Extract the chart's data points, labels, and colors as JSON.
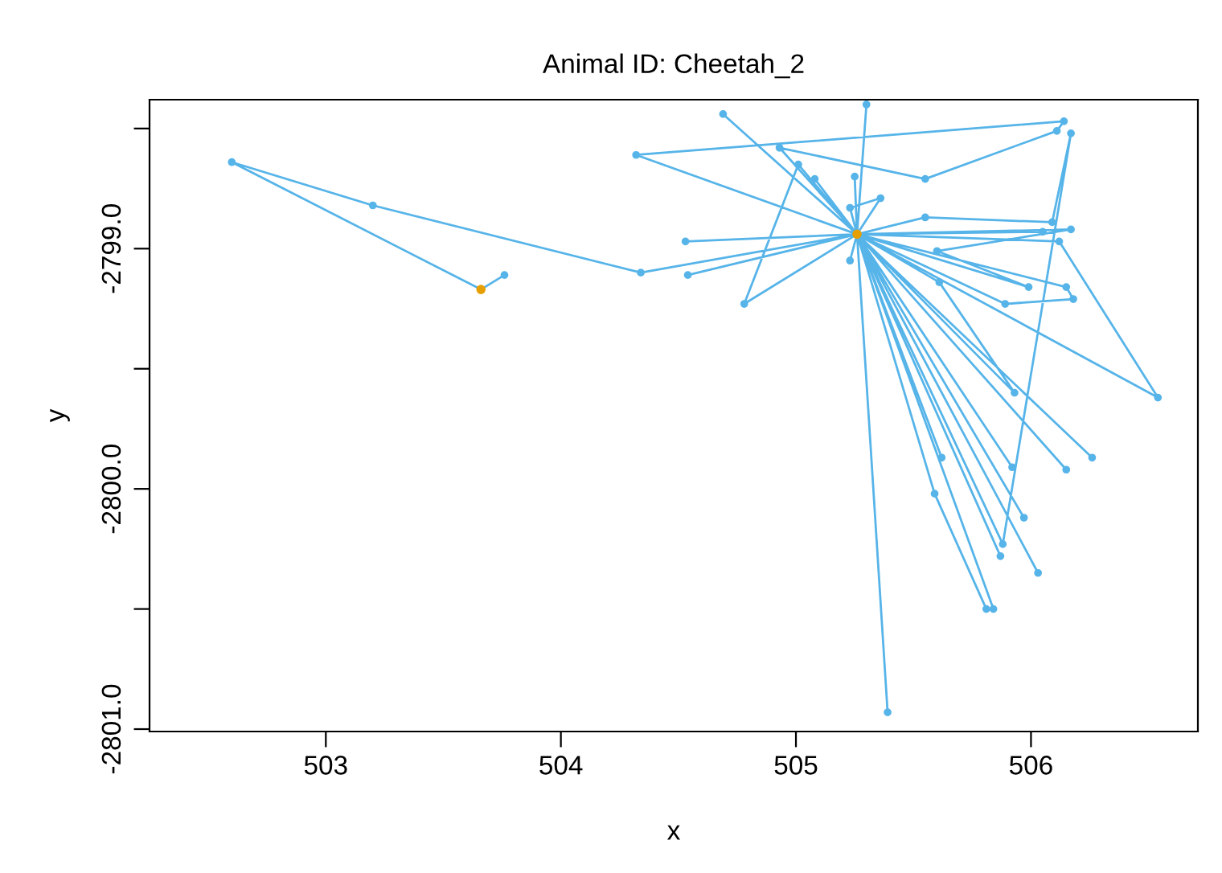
{
  "chart_data": {
    "type": "line",
    "title": "Animal ID: Cheetah_2",
    "xlabel": "x",
    "ylabel": "y",
    "xlim": [
      502.25,
      506.71
    ],
    "ylim": [
      -2801.01,
      -2798.38
    ],
    "xticks": [
      503,
      504,
      505,
      506
    ],
    "yticks": [
      {
        "value": -2798.5,
        "label": null
      },
      {
        "value": -2799,
        "label": "-2799.0"
      },
      {
        "value": -2799.5,
        "label": null
      },
      {
        "value": -2800,
        "label": "-2800.0"
      },
      {
        "value": -2800.5,
        "label": null
      },
      {
        "value": -2801,
        "label": "-2801.0"
      }
    ],
    "grid": false,
    "legend": false,
    "marker": "circle",
    "line_style": "solid",
    "series": [
      {
        "color": "#56b4e9",
        "x": [
          503.76,
          503.66,
          502.6,
          503.2,
          504.34,
          505.26,
          504.69,
          505.26,
          505.3,
          505.26,
          504.32,
          506.14,
          506.11,
          505.55,
          504.93,
          505.26,
          505.01,
          504.78,
          505.26,
          505.08,
          505.26,
          505.25,
          505.26,
          505.36,
          505.23,
          505.26,
          505.55,
          506.09,
          506.17,
          505.88,
          505.26,
          504.53,
          505.26,
          504.54,
          505.26,
          506.05,
          505.26,
          506.17,
          505.6,
          505.99,
          505.26,
          506.12,
          506.54,
          505.26,
          505.23,
          505.26,
          506.15,
          506.18,
          505.89,
          505.26,
          505.61,
          505.93,
          505.26,
          505.62,
          505.26,
          505.92,
          505.26,
          506.15,
          505.26,
          506.26,
          505.26,
          505.59,
          505.81,
          505.84,
          505.26,
          505.97,
          505.26,
          505.87,
          505.26,
          506.03,
          505.26,
          505.39,
          505.26
        ],
        "values": [
          -2799.11,
          -2799.17,
          -2798.64,
          -2798.82,
          -2799.1,
          -2798.94,
          -2798.44,
          -2798.94,
          -2798.4,
          -2798.94,
          -2798.61,
          -2798.47,
          -2798.51,
          -2798.71,
          -2798.58,
          -2798.94,
          -2798.65,
          -2799.23,
          -2798.94,
          -2798.71,
          -2798.94,
          -2798.7,
          -2798.94,
          -2798.79,
          -2798.83,
          -2798.94,
          -2798.87,
          -2798.89,
          -2798.52,
          -2800.23,
          -2798.94,
          -2798.97,
          -2798.94,
          -2799.11,
          -2798.94,
          -2798.93,
          -2798.94,
          -2798.92,
          -2799.01,
          -2799.16,
          -2798.94,
          -2798.97,
          -2799.62,
          -2798.94,
          -2799.05,
          -2798.94,
          -2799.16,
          -2799.21,
          -2799.23,
          -2798.94,
          -2799.14,
          -2799.6,
          -2798.94,
          -2799.87,
          -2798.94,
          -2799.91,
          -2798.94,
          -2799.92,
          -2798.94,
          -2799.87,
          -2798.94,
          -2800.02,
          -2800.5,
          -2800.5,
          -2798.94,
          -2800.12,
          -2798.94,
          -2800.28,
          -2798.94,
          -2800.35,
          -2798.94,
          -2800.93,
          -2798.94
        ]
      },
      {
        "type": "scatter",
        "color": "#e69f00",
        "x": [
          503.66,
          505.26
        ],
        "values": [
          -2799.17,
          -2798.94
        ]
      }
    ]
  }
}
